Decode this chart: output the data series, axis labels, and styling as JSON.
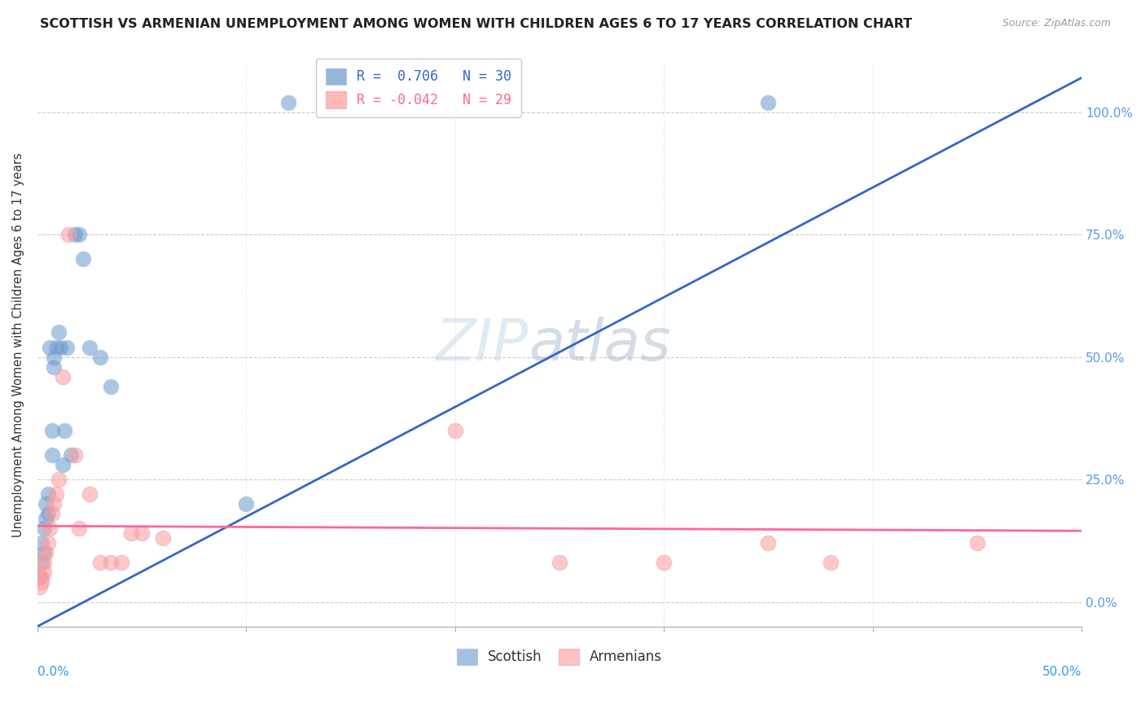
{
  "title": "SCOTTISH VS ARMENIAN UNEMPLOYMENT AMONG WOMEN WITH CHILDREN AGES 6 TO 17 YEARS CORRELATION CHART",
  "source": "Source: ZipAtlas.com",
  "ylabel": "Unemployment Among Women with Children Ages 6 to 17 years",
  "ytick_values": [
    0.0,
    0.25,
    0.5,
    0.75,
    1.0
  ],
  "ytick_labels": [
    "0.0%",
    "25.0%",
    "50.0%",
    "75.0%",
    "100.0%"
  ],
  "xlim": [
    0.0,
    0.5
  ],
  "ylim": [
    -0.05,
    1.1
  ],
  "blue_color": "#6699CC",
  "pink_color": "#FF9999",
  "line_blue_color": "#3366CC",
  "line_pink_color": "#FF6699",
  "legend_blue_text": "R =  0.706   N = 30",
  "legend_pink_text": "R = -0.042   N = 29",
  "legend_blue_color": "#3366CC",
  "legend_pink_color": "#FF6699",
  "watermark_zip": "ZIP",
  "watermark_atlas": "atlas",
  "scottish_x": [
    0.001,
    0.002,
    0.002,
    0.003,
    0.003,
    0.004,
    0.004,
    0.005,
    0.005,
    0.006,
    0.007,
    0.007,
    0.008,
    0.008,
    0.009,
    0.01,
    0.011,
    0.012,
    0.013,
    0.014,
    0.016,
    0.018,
    0.02,
    0.022,
    0.025,
    0.03,
    0.035,
    0.1,
    0.12,
    0.35
  ],
  "scottish_y": [
    0.05,
    0.08,
    0.12,
    0.1,
    0.15,
    0.17,
    0.2,
    0.22,
    0.18,
    0.52,
    0.3,
    0.35,
    0.5,
    0.48,
    0.52,
    0.55,
    0.52,
    0.28,
    0.35,
    0.52,
    0.3,
    0.75,
    0.75,
    0.7,
    0.52,
    0.5,
    0.44,
    0.2,
    1.02,
    1.02
  ],
  "armenian_x": [
    0.001,
    0.002,
    0.002,
    0.003,
    0.003,
    0.004,
    0.005,
    0.006,
    0.007,
    0.008,
    0.009,
    0.01,
    0.012,
    0.015,
    0.018,
    0.02,
    0.025,
    0.03,
    0.035,
    0.04,
    0.045,
    0.05,
    0.06,
    0.2,
    0.25,
    0.3,
    0.35,
    0.38,
    0.45
  ],
  "armenian_y": [
    0.03,
    0.04,
    0.05,
    0.06,
    0.08,
    0.1,
    0.12,
    0.15,
    0.18,
    0.2,
    0.22,
    0.25,
    0.46,
    0.75,
    0.3,
    0.15,
    0.22,
    0.08,
    0.08,
    0.08,
    0.14,
    0.14,
    0.13,
    0.35,
    0.08,
    0.08,
    0.12,
    0.08,
    0.12
  ],
  "blue_line_x0": 0.0,
  "blue_line_y0": -0.05,
  "blue_line_x1": 0.5,
  "blue_line_y1": 1.07,
  "pink_line_x0": 0.0,
  "pink_line_y0": 0.155,
  "pink_line_x1": 0.5,
  "pink_line_y1": 0.145
}
